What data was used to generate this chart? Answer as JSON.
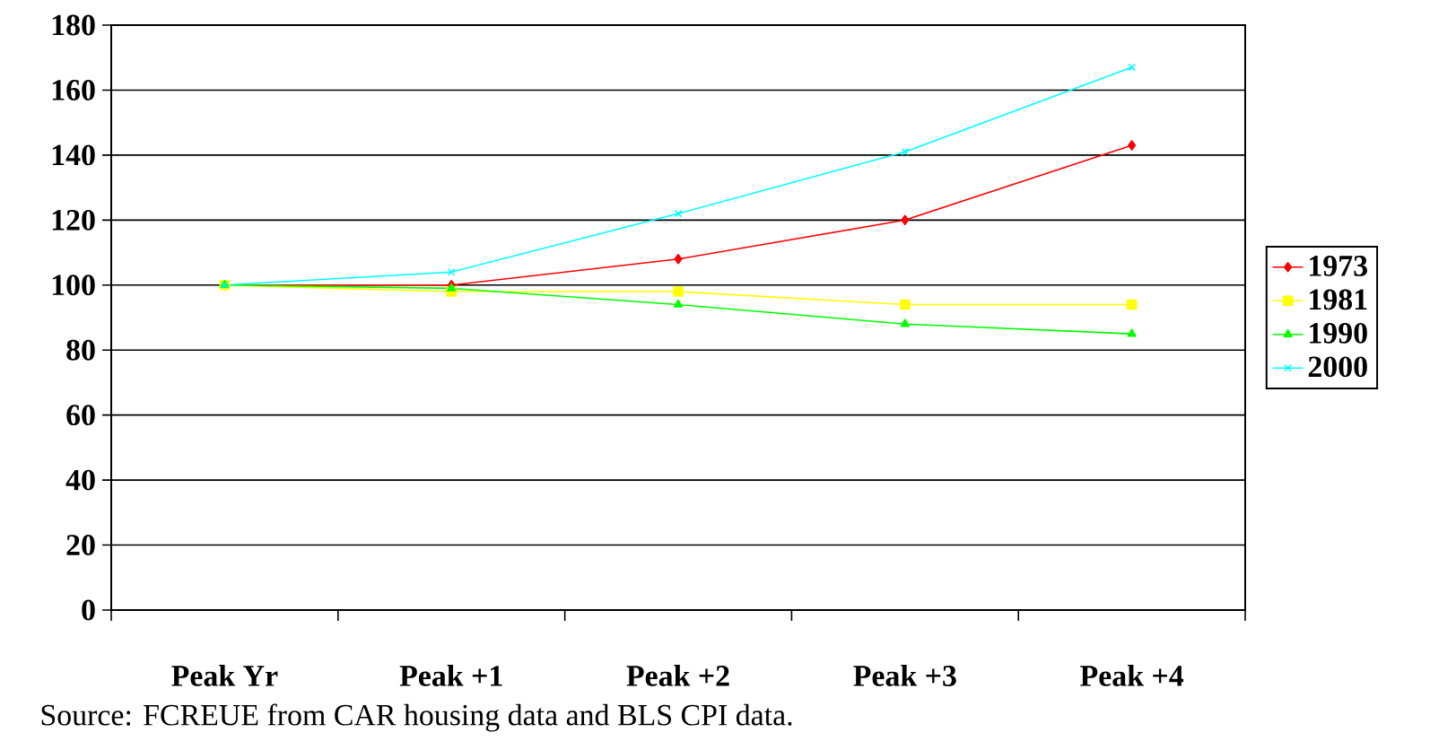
{
  "chart_data": {
    "type": "line",
    "categories": [
      "Peak Yr",
      "Peak +1",
      "Peak +2",
      "Peak +3",
      "Peak +4"
    ],
    "series": [
      {
        "name": "1973",
        "color": "#ff0000",
        "marker": "diamond",
        "values": [
          100,
          100,
          108,
          120,
          143
        ]
      },
      {
        "name": "1981",
        "color": "#ffff00",
        "marker": "square",
        "values": [
          100,
          98,
          98,
          94,
          94
        ]
      },
      {
        "name": "1990",
        "color": "#00ff00",
        "marker": "triangle",
        "values": [
          100,
          99,
          94,
          88,
          85
        ]
      },
      {
        "name": "2000",
        "color": "#00ffff",
        "marker": "cross",
        "values": [
          100,
          104,
          122,
          141,
          167
        ]
      }
    ],
    "ylim": [
      0,
      180
    ],
    "yticks": [
      0,
      20,
      40,
      60,
      80,
      100,
      120,
      140,
      160,
      180
    ],
    "grid": "y",
    "legend": "right",
    "annotations": [
      "Source:  FCREUE from CAR housing data and BLS CPI data."
    ]
  }
}
